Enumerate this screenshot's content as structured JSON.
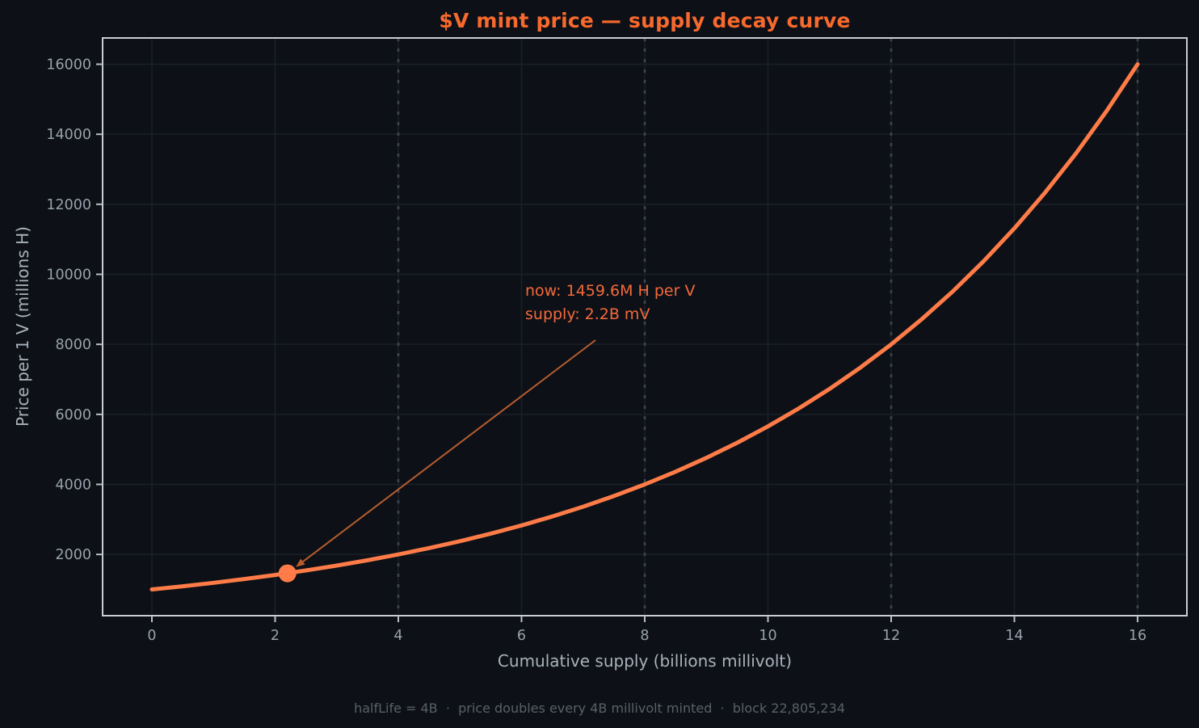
{
  "figure": {
    "background": "#0d1117",
    "footer": "halfLife = 4B  ·  price doubles every 4B millivolt minted  ·  block 22,805,234"
  },
  "chart_data": {
    "type": "line",
    "title": "$V mint price — supply decay curve",
    "xlabel": "Cumulative supply (billions millivolt)",
    "ylabel": "Price per 1 V (millions H)",
    "xlim": [
      -0.8,
      16.8
    ],
    "ylim": [
      250,
      16750
    ],
    "xticks": [
      0,
      2,
      4,
      6,
      8,
      10,
      12,
      14,
      16
    ],
    "yticks": [
      2000,
      4000,
      6000,
      8000,
      10000,
      12000,
      14000,
      16000
    ],
    "grid": true,
    "legend": false,
    "halflife_guides_x": [
      4,
      8,
      12,
      16
    ],
    "series": [
      {
        "name": "mint price",
        "x": [
          0,
          0.5,
          1,
          1.5,
          2,
          2.5,
          3,
          3.5,
          4,
          4.5,
          5,
          5.5,
          6,
          6.5,
          7,
          7.5,
          8,
          8.5,
          9,
          9.5,
          10,
          10.5,
          11,
          11.5,
          12,
          12.5,
          13,
          13.5,
          14,
          14.5,
          15,
          15.5,
          16
        ],
        "y": [
          1000,
          1090.5,
          1189.2,
          1296.8,
          1414.2,
          1542.2,
          1681.8,
          1834.0,
          2000,
          2181.0,
          2378.4,
          2593.7,
          2828.4,
          3084.4,
          3363.6,
          3668.0,
          4000,
          4362.1,
          4756.8,
          5187.4,
          5656.9,
          6168.8,
          6727.2,
          7336.0,
          8000,
          8724.1,
          9513.7,
          10374.7,
          11313.7,
          12337.7,
          13454.3,
          14672.1,
          16000
        ]
      }
    ],
    "current_point": {
      "x": 2.2,
      "y": 1459.6
    },
    "annotation": {
      "line1": "now: 1459.6M H per V",
      "line2": "supply: 2.2B mV"
    }
  },
  "colors": {
    "background": "#0d1117",
    "title": "#f7692d",
    "curve": "#ff7c48",
    "marker": "#ff7c48",
    "annotation_text": "#f4693a",
    "arrow": "#b85c2e",
    "spine": "#cacdd4",
    "grid": "#1b2028",
    "guide_dotted": "#3e4450",
    "tick": "#b9bec6",
    "tick_label": "#99a1ac",
    "axis_label": "#a9b1bc",
    "footer": "#596069"
  }
}
